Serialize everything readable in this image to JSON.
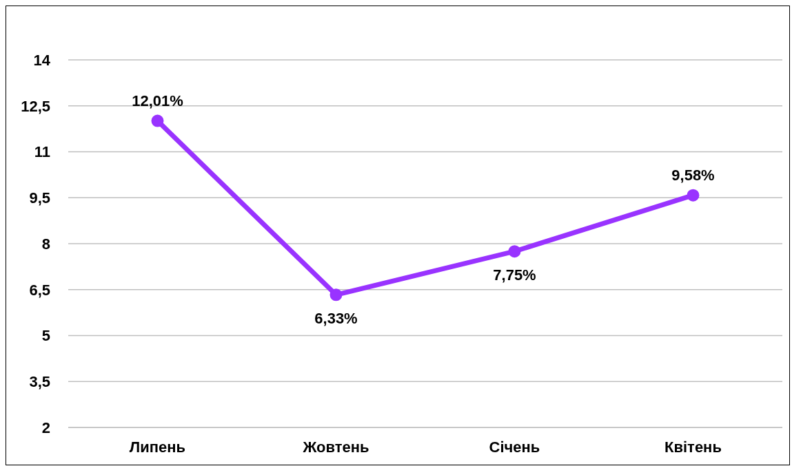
{
  "chart_data": {
    "type": "line",
    "categories": [
      "Липень",
      "Жовтень",
      "Січень",
      "Квітень"
    ],
    "series": [
      {
        "color": "#9933ff",
        "values": [
          12.01,
          6.33,
          7.75,
          9.58
        ],
        "value_labels": [
          "12,01%",
          "6,33%",
          "7,75%",
          "9,58%"
        ]
      }
    ],
    "ylim": [
      2,
      14
    ],
    "yticks": [
      2,
      {
        "value": 3.5,
        "label": "3,5"
      },
      5,
      {
        "value": 6.5,
        "label": "6,5"
      },
      8,
      {
        "value": 9.5,
        "label": "9,5"
      },
      11,
      {
        "value": 12.5,
        "label": "12,5"
      },
      14
    ],
    "grid": "y",
    "marker": "circle",
    "line_style": "solid",
    "legend": false
  }
}
